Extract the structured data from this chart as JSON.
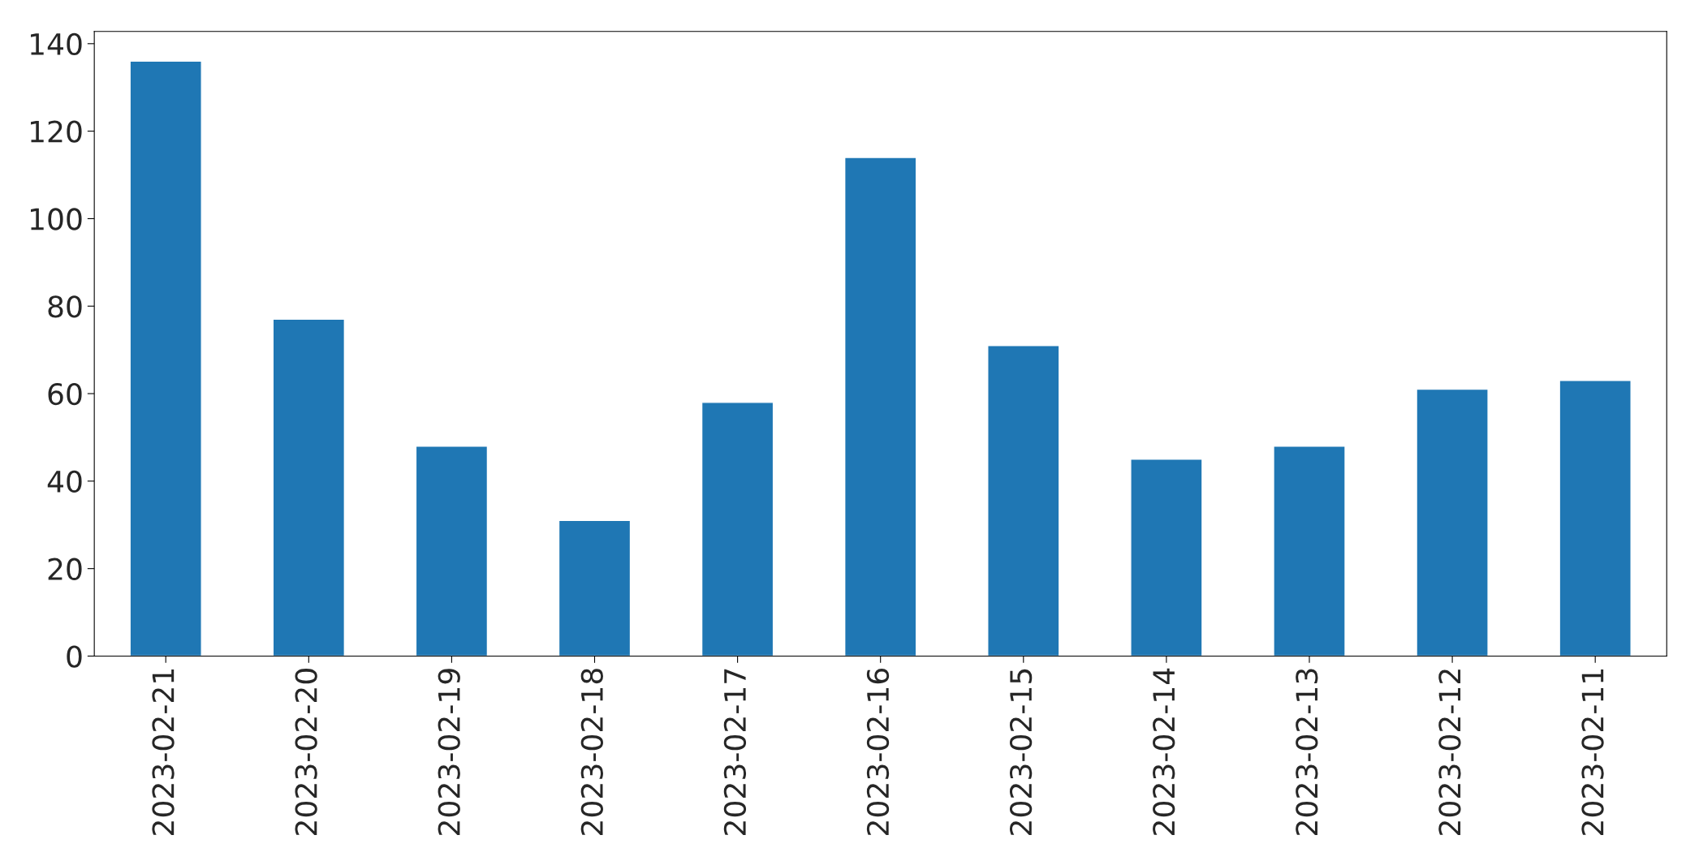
{
  "chart_data": {
    "type": "bar",
    "categories": [
      "2023-02-21",
      "2023-02-20",
      "2023-02-19",
      "2023-02-18",
      "2023-02-17",
      "2023-02-16",
      "2023-02-15",
      "2023-02-14",
      "2023-02-13",
      "2023-02-12",
      "2023-02-11"
    ],
    "values": [
      136,
      77,
      48,
      31,
      58,
      114,
      71,
      45,
      48,
      61,
      63
    ],
    "color": "#1f77b4",
    "ylim": [
      0,
      142.8
    ],
    "yticks": [
      0,
      20,
      40,
      60,
      80,
      100,
      120,
      140
    ],
    "grid": false,
    "legend": false
  }
}
